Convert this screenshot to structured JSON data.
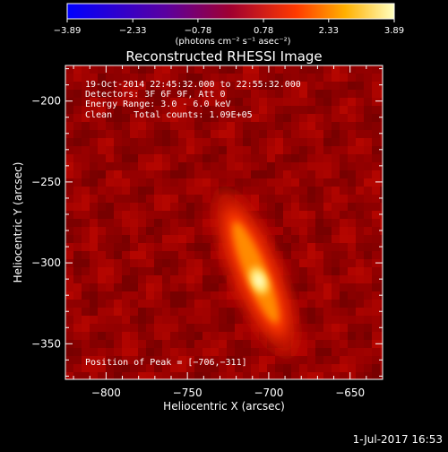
{
  "chart_data": {
    "type": "heatmap",
    "title": "Reconstructed RHESSI Image",
    "xlabel": "Heliocentric X (arcsec)",
    "ylabel": "Heliocentric Y (arcsec)",
    "xlim": [
      -825,
      -630
    ],
    "ylim": [
      -372,
      -178
    ],
    "xticks": [
      -800,
      -750,
      -700,
      -650
    ],
    "yticks": [
      -200,
      -250,
      -300,
      -350
    ],
    "xtick_labels": [
      "−800",
      "−750",
      "−700",
      "−650"
    ],
    "ytick_labels": [
      "−200",
      "−250",
      "−300",
      "−350"
    ],
    "colorbar": {
      "range": [
        -3.89,
        3.89
      ],
      "tick_labels": [
        "−3.89",
        "−2.33",
        "−0.78",
        "0.78",
        "2.33",
        "3.89"
      ],
      "unit_label": "(photons cm⁻² s⁻¹ asec⁻²)"
    },
    "annotations": {
      "time_range": "19-Oct-2014 22:45:32.000 to 22:55:32.000",
      "detectors": "Detectors: 3F 6F 9F, Att 0",
      "energy": "Energy Range: 3.0 - 6.0 keV",
      "method": "Clean    Total counts: 1.09E+05",
      "peak": "Position of Peak = [−706,−311]"
    },
    "peak_position": [
      -706,
      -311
    ],
    "source": {
      "elongated_from": [
        -722,
        -272
      ],
      "elongated_to": [
        -694,
        -340
      ]
    }
  },
  "footer": {
    "timestamp": "1-Jul-2017 16:53"
  }
}
